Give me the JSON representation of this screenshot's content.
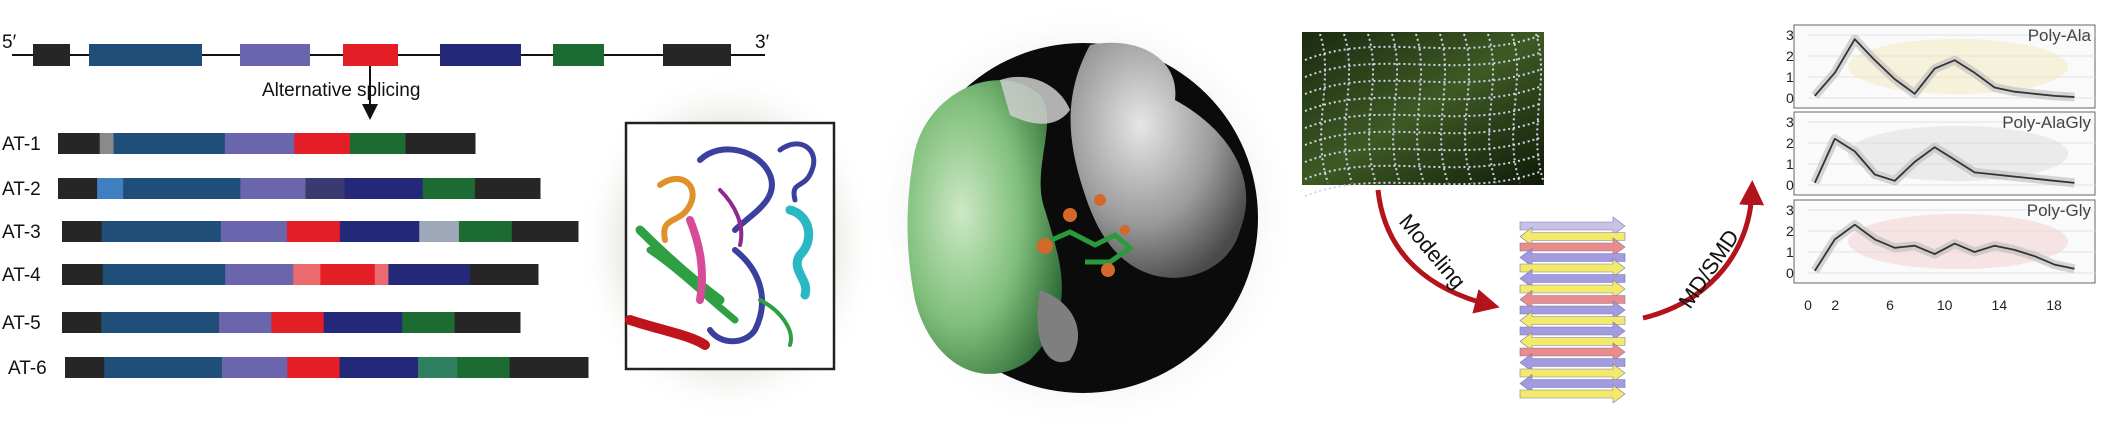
{
  "gene": {
    "five_prime": "5′",
    "three_prime": "3′",
    "exon_colors": [
      "#262626",
      "#1f4e79",
      "#6a65ad",
      "#e41e26",
      "#232878",
      "#1c6b32",
      "#262626"
    ],
    "splicing_label": "Alternative splicing"
  },
  "isoforms": [
    {
      "label": "AT-1",
      "segments": [
        {
          "color": "#262626",
          "len": 3
        },
        {
          "color": "#8a8a8a",
          "len": 1
        },
        {
          "color": "#1f4e79",
          "len": 8
        },
        {
          "color": "#6a65ad",
          "len": 5
        },
        {
          "color": "#e41e26",
          "len": 4
        },
        {
          "color": "#1c6b32",
          "len": 4
        },
        {
          "color": "#262626",
          "len": 5
        }
      ]
    },
    {
      "label": "AT-2",
      "segments": [
        {
          "color": "#262626",
          "len": 3
        },
        {
          "color": "#3f7ec0",
          "len": 2
        },
        {
          "color": "#1f4e79",
          "len": 9
        },
        {
          "color": "#6a65ad",
          "len": 5
        },
        {
          "color": "#3a3a70",
          "len": 3
        },
        {
          "color": "#232878",
          "len": 6
        },
        {
          "color": "#1c6b32",
          "len": 4
        },
        {
          "color": "#262626",
          "len": 5
        }
      ]
    },
    {
      "label": "AT-3",
      "segments": [
        {
          "color": "#262626",
          "len": 3
        },
        {
          "color": "#1f4e79",
          "len": 9
        },
        {
          "color": "#6a65ad",
          "len": 5
        },
        {
          "color": "#e41e26",
          "len": 4
        },
        {
          "color": "#232878",
          "len": 6
        },
        {
          "color": "#9ea8b8",
          "len": 3
        },
        {
          "color": "#1c6b32",
          "len": 4
        },
        {
          "color": "#262626",
          "len": 5
        }
      ]
    },
    {
      "label": "AT-4",
      "segments": [
        {
          "color": "#262626",
          "len": 3
        },
        {
          "color": "#1f4e79",
          "len": 9
        },
        {
          "color": "#6a65ad",
          "len": 5
        },
        {
          "color": "#ea6a6e",
          "len": 2
        },
        {
          "color": "#e41e26",
          "len": 4
        },
        {
          "color": "#ea6a6e",
          "len": 1
        },
        {
          "color": "#232878",
          "len": 6
        },
        {
          "color": "#262626",
          "len": 5
        }
      ]
    },
    {
      "label": "AT-5",
      "segments": [
        {
          "color": "#262626",
          "len": 3
        },
        {
          "color": "#1f4e79",
          "len": 9
        },
        {
          "color": "#6a65ad",
          "len": 4
        },
        {
          "color": "#e41e26",
          "len": 4
        },
        {
          "color": "#232878",
          "len": 6
        },
        {
          "color": "#1c6b32",
          "len": 4
        },
        {
          "color": "#262626",
          "len": 5
        }
      ]
    },
    {
      "label": "AT-6",
      "segments": [
        {
          "color": "#262626",
          "len": 3
        },
        {
          "color": "#1f4e79",
          "len": 9
        },
        {
          "color": "#6a65ad",
          "len": 5
        },
        {
          "color": "#e41e26",
          "len": 4
        },
        {
          "color": "#232878",
          "len": 6
        },
        {
          "color": "#2f8060",
          "len": 3
        },
        {
          "color": "#1c6b32",
          "len": 4
        },
        {
          "color": "#262626",
          "len": 6
        }
      ]
    }
  ],
  "workflow": {
    "modeling_label": "Modeling",
    "mdsmd_label": "MD/SMD",
    "arrow_color": "#b3131b"
  },
  "plots": {
    "x_ticks": [
      "0",
      "2",
      "6",
      "10",
      "14",
      "18"
    ],
    "y_ticks": [
      "0",
      "1",
      "2",
      "3"
    ],
    "panels": [
      {
        "title": "Poly-Ala",
        "values": [
          0.1,
          1.2,
          2.8,
          1.8,
          0.9,
          0.2,
          1.4,
          1.8,
          1.2,
          0.5,
          0.3,
          0.2,
          0.1,
          0.05
        ]
      },
      {
        "title": "Poly-AlaGly",
        "values": [
          0.1,
          2.2,
          1.6,
          0.5,
          0.2,
          1.1,
          1.8,
          1.2,
          0.6,
          0.5,
          0.4,
          0.3,
          0.2,
          0.1
        ]
      },
      {
        "title": "Poly-Gly",
        "values": [
          0.1,
          1.6,
          2.3,
          1.6,
          1.2,
          1.3,
          0.9,
          1.4,
          1.0,
          1.3,
          1.1,
          0.8,
          0.4,
          0.2
        ]
      }
    ]
  }
}
